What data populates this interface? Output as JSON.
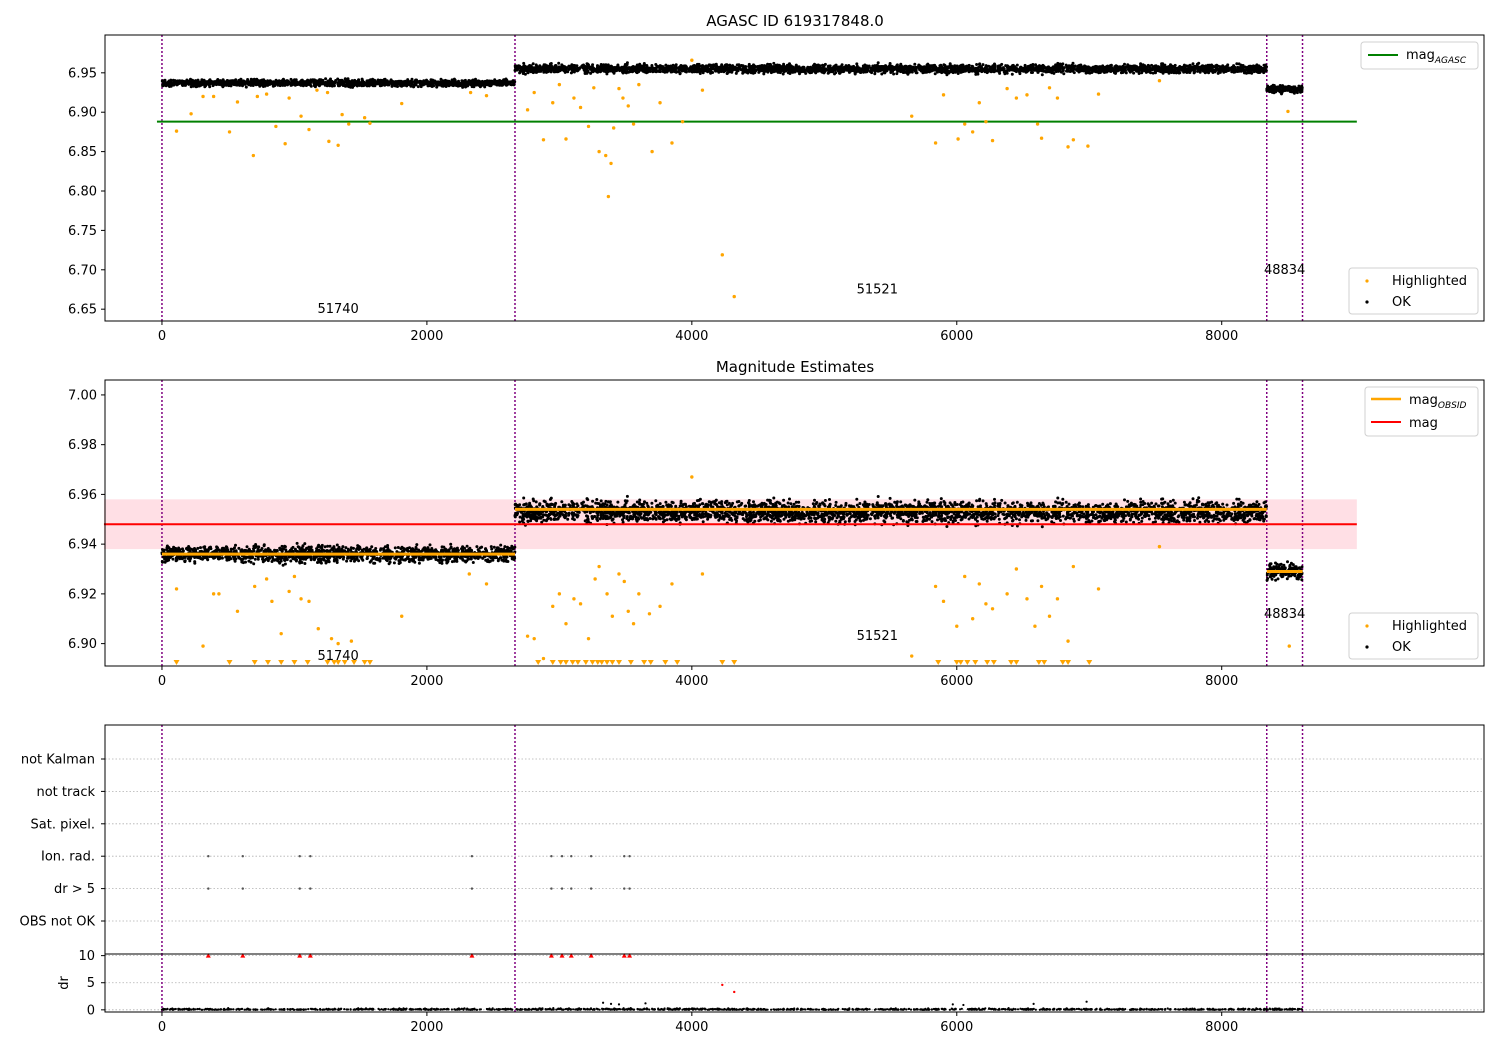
{
  "chart_data": [
    {
      "type": "scatter",
      "title": "AGASC ID 619317848.0",
      "xlabel": "",
      "ylabel": "",
      "xlim": [
        -430,
        9980
      ],
      "ylim": [
        6.635,
        6.998
      ],
      "xticks": [
        0,
        2000,
        4000,
        6000,
        8000
      ],
      "xtick_labels": [
        "0",
        "2000",
        "4000",
        "6000",
        "8000"
      ],
      "yticks": [
        6.65,
        6.7,
        6.75,
        6.8,
        6.85,
        6.9,
        6.95
      ],
      "ytick_labels": [
        "6.65",
        "6.70",
        "6.75",
        "6.80",
        "6.85",
        "6.90",
        "6.95"
      ],
      "colors": {
        "ok": "#000000",
        "highlighted": "#ffa500",
        "mag_agasc": "#008000",
        "obsid_boundary": "#800080"
      },
      "obsid_boundaries": [
        0,
        2665,
        8340,
        8610
      ],
      "obsid_labels": [
        {
          "text": "51740",
          "x": 1330,
          "y": 6.65
        },
        {
          "text": "51521",
          "x": 5400,
          "y": 6.675
        },
        {
          "text": "48834",
          "x": 8475,
          "y": 6.7
        }
      ],
      "lines": [
        {
          "name": "mag_AGASC",
          "y": 6.888,
          "x": [
            0,
            9020
          ]
        }
      ],
      "ok_band_segments": [
        {
          "x": [
            0,
            2665
          ],
          "center": 6.937,
          "spread": 0.004
        },
        {
          "x": [
            2665,
            8340
          ],
          "center": 6.955,
          "spread": 0.005
        },
        {
          "x": [
            8340,
            8610
          ],
          "center": 6.929,
          "spread": 0.004
        }
      ],
      "highlighted_points": [
        [
          110,
          6.876
        ],
        [
          220,
          6.898
        ],
        [
          310,
          6.92
        ],
        [
          390,
          6.92
        ],
        [
          510,
          6.875
        ],
        [
          570,
          6.913
        ],
        [
          690,
          6.845
        ],
        [
          720,
          6.92
        ],
        [
          790,
          6.923
        ],
        [
          860,
          6.882
        ],
        [
          930,
          6.86
        ],
        [
          960,
          6.918
        ],
        [
          1050,
          6.895
        ],
        [
          1110,
          6.878
        ],
        [
          1170,
          6.928
        ],
        [
          1250,
          6.925
        ],
        [
          1260,
          6.863
        ],
        [
          1330,
          6.858
        ],
        [
          1360,
          6.897
        ],
        [
          1410,
          6.885
        ],
        [
          1530,
          6.893
        ],
        [
          1570,
          6.886
        ],
        [
          1810,
          6.911
        ],
        [
          2330,
          6.925
        ],
        [
          2450,
          6.921
        ],
        [
          2760,
          6.903
        ],
        [
          2810,
          6.925
        ],
        [
          2880,
          6.865
        ],
        [
          2950,
          6.912
        ],
        [
          3000,
          6.935
        ],
        [
          3050,
          6.866
        ],
        [
          3110,
          6.918
        ],
        [
          3160,
          6.906
        ],
        [
          3220,
          6.882
        ],
        [
          3260,
          6.931
        ],
        [
          3300,
          6.85
        ],
        [
          3350,
          6.845
        ],
        [
          3370,
          6.793
        ],
        [
          3390,
          6.835
        ],
        [
          3410,
          6.88
        ],
        [
          3450,
          6.93
        ],
        [
          3480,
          6.918
        ],
        [
          3520,
          6.908
        ],
        [
          3560,
          6.885
        ],
        [
          3600,
          6.935
        ],
        [
          3700,
          6.85
        ],
        [
          3760,
          6.912
        ],
        [
          3850,
          6.861
        ],
        [
          3930,
          6.888
        ],
        [
          4000,
          6.966
        ],
        [
          4080,
          6.928
        ],
        [
          4230,
          6.719
        ],
        [
          4320,
          6.666
        ],
        [
          5660,
          6.895
        ],
        [
          5840,
          6.861
        ],
        [
          5900,
          6.922
        ],
        [
          6010,
          6.866
        ],
        [
          6060,
          6.885
        ],
        [
          6120,
          6.875
        ],
        [
          6170,
          6.912
        ],
        [
          6220,
          6.888
        ],
        [
          6270,
          6.864
        ],
        [
          6380,
          6.93
        ],
        [
          6450,
          6.918
        ],
        [
          6530,
          6.922
        ],
        [
          6610,
          6.885
        ],
        [
          6640,
          6.867
        ],
        [
          6700,
          6.931
        ],
        [
          6760,
          6.918
        ],
        [
          6840,
          6.856
        ],
        [
          6880,
          6.865
        ],
        [
          6990,
          6.857
        ],
        [
          7070,
          6.923
        ],
        [
          7530,
          6.94
        ],
        [
          8500,
          6.901
        ]
      ],
      "legend": {
        "placement": "right",
        "entries": [
          "mag_AGASC",
          "Highlighted",
          "OK"
        ]
      }
    },
    {
      "type": "scatter",
      "title": "Magnitude Estimates",
      "xlabel": "",
      "ylabel": "",
      "xlim": [
        -430,
        9980
      ],
      "ylim": [
        6.891,
        7.006
      ],
      "xticks": [
        0,
        2000,
        4000,
        6000,
        8000
      ],
      "xtick_labels": [
        "0",
        "2000",
        "4000",
        "6000",
        "8000"
      ],
      "yticks": [
        6.9,
        6.92,
        6.94,
        6.96,
        6.98,
        7.0
      ],
      "ytick_labels": [
        "6.90",
        "6.92",
        "6.94",
        "6.96",
        "6.98",
        "7.00"
      ],
      "colors": {
        "ok": "#000000",
        "highlighted": "#ffa500",
        "mag_obsid": "#ffa500",
        "mag": "#ff0000",
        "mag_band": "#ffc0cb",
        "obsid_boundary": "#800080"
      },
      "obsid_boundaries": [
        0,
        2665,
        8340,
        8610
      ],
      "obsid_labels": [
        {
          "text": "51740",
          "x": 1330,
          "y": 6.895
        },
        {
          "text": "51521",
          "x": 5400,
          "y": 6.903
        },
        {
          "text": "48834",
          "x": 8475,
          "y": 6.912
        }
      ],
      "mag": {
        "y": 6.948,
        "band": [
          6.938,
          6.958
        ],
        "x": [
          0,
          9020
        ]
      },
      "mag_obsid_segments": [
        {
          "x": [
            0,
            2665
          ],
          "y": 6.936
        },
        {
          "x": [
            2665,
            8340
          ],
          "y": 6.954
        },
        {
          "x": [
            8340,
            8610
          ],
          "y": 6.929
        }
      ],
      "ok_band_segments": [
        {
          "x": [
            0,
            2665
          ],
          "center": 6.936,
          "spread": 0.003
        },
        {
          "x": [
            2665,
            8340
          ],
          "center": 6.953,
          "spread": 0.004
        },
        {
          "x": [
            8340,
            8610
          ],
          "center": 6.929,
          "spread": 0.003
        }
      ],
      "highlighted_points": [
        [
          110,
          6.922
        ],
        [
          310,
          6.899
        ],
        [
          390,
          6.92
        ],
        [
          430,
          6.92
        ],
        [
          570,
          6.913
        ],
        [
          700,
          6.923
        ],
        [
          790,
          6.926
        ],
        [
          830,
          6.917
        ],
        [
          900,
          6.904
        ],
        [
          960,
          6.921
        ],
        [
          1000,
          6.927
        ],
        [
          1050,
          6.918
        ],
        [
          1110,
          6.917
        ],
        [
          1180,
          6.906
        ],
        [
          1280,
          6.902
        ],
        [
          1330,
          6.9
        ],
        [
          1430,
          6.901
        ],
        [
          1810,
          6.911
        ],
        [
          2320,
          6.928
        ],
        [
          2450,
          6.924
        ],
        [
          2760,
          6.903
        ],
        [
          2810,
          6.902
        ],
        [
          2880,
          6.894
        ],
        [
          2950,
          6.915
        ],
        [
          3000,
          6.92
        ],
        [
          3050,
          6.908
        ],
        [
          3110,
          6.918
        ],
        [
          3160,
          6.916
        ],
        [
          3220,
          6.902
        ],
        [
          3270,
          6.926
        ],
        [
          3300,
          6.931
        ],
        [
          3360,
          6.92
        ],
        [
          3400,
          6.911
        ],
        [
          3450,
          6.928
        ],
        [
          3490,
          6.925
        ],
        [
          3520,
          6.913
        ],
        [
          3560,
          6.908
        ],
        [
          3600,
          6.92
        ],
        [
          3680,
          6.912
        ],
        [
          3760,
          6.915
        ],
        [
          3850,
          6.924
        ],
        [
          4000,
          6.967
        ],
        [
          4080,
          6.928
        ],
        [
          5660,
          6.895
        ],
        [
          5840,
          6.923
        ],
        [
          5900,
          6.917
        ],
        [
          6000,
          6.907
        ],
        [
          6060,
          6.927
        ],
        [
          6120,
          6.91
        ],
        [
          6170,
          6.924
        ],
        [
          6220,
          6.916
        ],
        [
          6270,
          6.914
        ],
        [
          6380,
          6.92
        ],
        [
          6450,
          6.93
        ],
        [
          6530,
          6.918
        ],
        [
          6590,
          6.907
        ],
        [
          6640,
          6.923
        ],
        [
          6700,
          6.911
        ],
        [
          6760,
          6.918
        ],
        [
          6840,
          6.901
        ],
        [
          6880,
          6.931
        ],
        [
          7070,
          6.922
        ],
        [
          7530,
          6.939
        ],
        [
          8510,
          6.899
        ]
      ],
      "below_axis_x": [
        110,
        510,
        700,
        800,
        900,
        1000,
        1100,
        1250,
        1300,
        1330,
        1380,
        1450,
        1530,
        1570,
        2840,
        2950,
        3010,
        3050,
        3100,
        3140,
        3200,
        3250,
        3290,
        3320,
        3360,
        3400,
        3450,
        3540,
        3640,
        3690,
        3800,
        3890,
        4230,
        4320,
        5860,
        6000,
        6030,
        6080,
        6140,
        6230,
        6280,
        6410,
        6450,
        6620,
        6660,
        6800,
        6840,
        7000
      ],
      "legend": {
        "placement": "right",
        "entries": [
          "mag_OBSID",
          "mag",
          "Highlighted",
          "OK"
        ]
      }
    },
    {
      "type": "scatter",
      "title": "",
      "xlabel": "",
      "ylabel": "",
      "xlim": [
        -430,
        9980
      ],
      "categories": [
        "not Kalman",
        "not track",
        "Sat. pixel.",
        "Ion. rad.",
        "dr > 5",
        "OBS not OK"
      ],
      "colors": {
        "flag_point": "#555555",
        "grid": "#b0b0b0",
        "obsid_boundary": "#800080"
      },
      "obsid_boundaries": [
        0,
        2665,
        8340,
        8610
      ],
      "flag_points": {
        "Ion. rad.": [
          350,
          610,
          1040,
          1120,
          2340,
          2940,
          3020,
          3090,
          3240,
          3490,
          3530
        ],
        "dr > 5": [
          350,
          610,
          1040,
          1120,
          2340,
          2940,
          3020,
          3090,
          3240,
          3490,
          3530
        ]
      }
    },
    {
      "type": "scatter",
      "title": "",
      "xlabel": "",
      "ylabel": "dr",
      "xlim": [
        -430,
        9980
      ],
      "ylim": [
        -0.4,
        10.3
      ],
      "xticks": [
        0,
        2000,
        4000,
        6000,
        8000
      ],
      "xtick_labels": [
        "0",
        "2000",
        "4000",
        "6000",
        "8000"
      ],
      "yticks": [
        0,
        5,
        10
      ],
      "ytick_labels": [
        "0",
        "5",
        "10"
      ],
      "colors": {
        "points": "#000000",
        "clipped": "#ff0000",
        "grid": "#b0b0b0",
        "obsid_boundary": "#800080"
      },
      "obsid_boundaries": [
        0,
        2665,
        8340,
        8610
      ],
      "clipped_at_10_x": [
        350,
        610,
        1040,
        1120,
        2340,
        2940,
        3020,
        3090,
        3240,
        3490,
        3530
      ],
      "red_points": [
        [
          4230,
          4.6
        ],
        [
          4320,
          3.3
        ]
      ],
      "extra_points": [
        [
          3330,
          1.3
        ],
        [
          3390,
          1.1
        ],
        [
          3450,
          1.0
        ],
        [
          3650,
          1.2
        ],
        [
          5970,
          1.0
        ],
        [
          6050,
          0.9
        ],
        [
          6580,
          1.1
        ],
        [
          6980,
          1.5
        ]
      ]
    }
  ]
}
